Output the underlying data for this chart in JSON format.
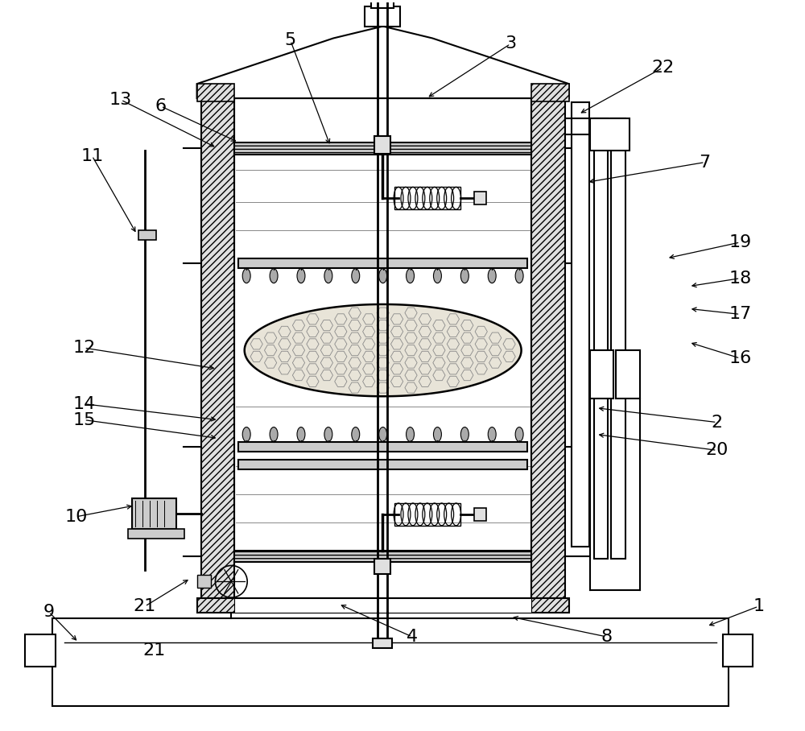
{
  "bg_color": "#ffffff",
  "line_color": "#000000",
  "label_color": "#000000",
  "label_fontsize": 16,
  "figsize": [
    10.0,
    9.08
  ]
}
